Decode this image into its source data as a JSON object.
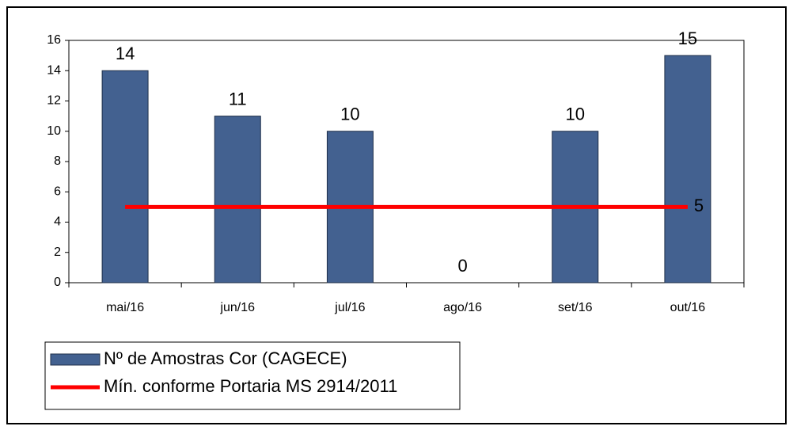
{
  "chart_data": {
    "type": "bar",
    "categories": [
      "mai/16",
      "jun/16",
      "jul/16",
      "ago/16",
      "set/16",
      "out/16"
    ],
    "series": [
      {
        "name": "Nº de Amostras Cor (CAGECE)",
        "type": "bar",
        "color": "#436190",
        "values": [
          14,
          11,
          10,
          0,
          10,
          15
        ],
        "data_labels": "all"
      },
      {
        "name": "Mín. conforme Portaria MS 2914/2011",
        "type": "line",
        "color": "#ff0000",
        "values": [
          5,
          5,
          5,
          5,
          5,
          5
        ],
        "data_labels": "last"
      }
    ],
    "ylim": [
      0,
      16
    ],
    "yticks": [
      0,
      2,
      4,
      6,
      8,
      10,
      12,
      14,
      16
    ],
    "grid": false
  }
}
